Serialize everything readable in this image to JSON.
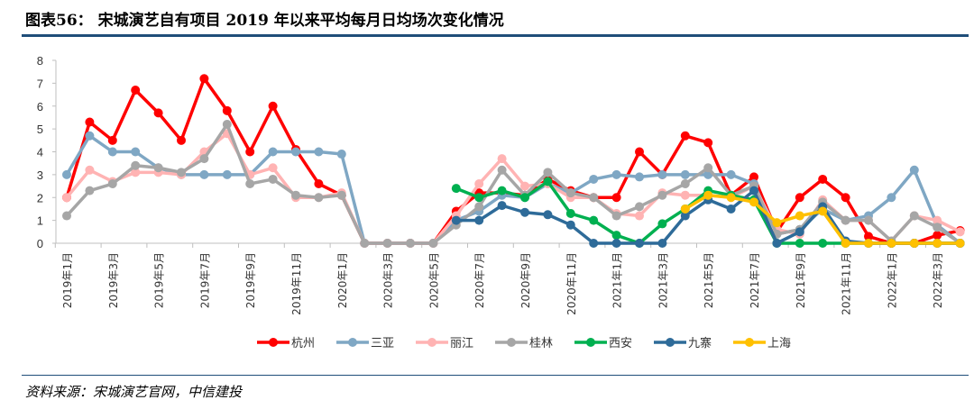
{
  "title": "图表56：  宋城演艺自有项目 2019 年以来平均每月日均场次变化情况",
  "source": "资料来源：宋城演艺官网，中信建投",
  "chart_data": {
    "type": "line",
    "ylim": [
      0,
      8
    ],
    "yticks": [
      "0",
      "1",
      "2",
      "3",
      "4",
      "5",
      "6",
      "7",
      "8"
    ],
    "x": [
      "2019年1月",
      "2019年2月",
      "2019年3月",
      "2019年4月",
      "2019年5月",
      "2019年6月",
      "2019年7月",
      "2019年8月",
      "2019年9月",
      "2019年10月",
      "2019年11月",
      "2019年12月",
      "2020年1月",
      "2020年2月",
      "2020年3月",
      "2020年4月",
      "2020年5月",
      "2020年6月",
      "2020年7月",
      "2020年8月",
      "2020年9月",
      "2020年10月",
      "2020年11月",
      "2020年12月",
      "2021年1月",
      "2021年2月",
      "2021年3月",
      "2021年4月",
      "2021年5月",
      "2021年6月",
      "2021年7月",
      "2021年8月",
      "2021年9月",
      "2021年10月",
      "2021年11月",
      "2021年12月",
      "2022年1月",
      "2022年2月",
      "2022年3月",
      "2022年4月"
    ],
    "xtick_labels": [
      "2019年1月",
      "2019年3月",
      "2019年5月",
      "2019年7月",
      "2019年9月",
      "2019年11月",
      "2020年1月",
      "2020年3月",
      "2020年5月",
      "2020年7月",
      "2020年9月",
      "2020年11月",
      "2021年1月",
      "2021年3月",
      "2021年5月",
      "2021年7月",
      "2021年9月",
      "2021年11月",
      "2022年1月",
      "2022年3月"
    ],
    "legend": "bottom",
    "series": [
      {
        "name": "杭州",
        "color": "#ff0000",
        "values": [
          2.0,
          5.3,
          4.5,
          6.7,
          5.7,
          4.5,
          7.2,
          5.8,
          4.0,
          6.0,
          4.1,
          2.6,
          2.1,
          0,
          0,
          0,
          0,
          1.4,
          2.2,
          2.2,
          2.1,
          2.8,
          2.3,
          2.0,
          2.0,
          4.0,
          3.0,
          4.7,
          4.4,
          2.1,
          2.9,
          0.5,
          2.0,
          2.8,
          2.0,
          0.3,
          0,
          0,
          0.35,
          0.55
        ]
      },
      {
        "name": "三亚",
        "color": "#7fa7c4",
        "values": [
          3.0,
          4.7,
          4.0,
          4.0,
          3.3,
          3.0,
          3.0,
          3.0,
          3.0,
          4.0,
          4.0,
          4.0,
          3.9,
          0,
          0,
          0,
          0,
          1.0,
          1.4,
          2.1,
          2.0,
          2.6,
          2.2,
          2.8,
          3.0,
          2.9,
          3.0,
          3.0,
          3.0,
          3.0,
          2.6,
          0.4,
          0.6,
          1.5,
          1.0,
          1.2,
          2.0,
          3.2,
          0.8,
          0
        ]
      },
      {
        "name": "丽江",
        "color": "#ffb3b3",
        "values": [
          2.0,
          3.2,
          2.7,
          3.1,
          3.1,
          3.0,
          4.0,
          4.8,
          3.0,
          3.3,
          2.0,
          2.0,
          2.2,
          0,
          0,
          0,
          0,
          1.2,
          2.6,
          3.7,
          2.5,
          2.6,
          2.0,
          2.0,
          1.3,
          1.2,
          2.2,
          2.1,
          2.1,
          2.0,
          2.5,
          0.6,
          0.4,
          1.9,
          1.0,
          1.0,
          0.1,
          1.2,
          1.0,
          0.5
        ]
      },
      {
        "name": "桂林",
        "color": "#a6a6a6",
        "values": [
          1.2,
          2.3,
          2.6,
          3.4,
          3.3,
          3.1,
          3.7,
          5.2,
          2.6,
          2.8,
          2.1,
          2.0,
          2.1,
          0,
          0,
          0,
          0,
          0.8,
          1.6,
          3.2,
          2.1,
          3.1,
          2.2,
          2.0,
          1.2,
          1.6,
          2.1,
          2.6,
          3.3,
          2.1,
          2.5,
          0.4,
          0.6,
          1.8,
          1.0,
          1.0,
          0.1,
          1.2,
          0.7,
          0
        ]
      },
      {
        "name": "西安",
        "color": "#00b050",
        "values": [
          null,
          null,
          null,
          null,
          null,
          null,
          null,
          null,
          null,
          null,
          null,
          null,
          null,
          null,
          null,
          null,
          null,
          2.4,
          2.0,
          2.3,
          2.0,
          2.7,
          1.3,
          1.0,
          0.35,
          0,
          0.85,
          1.5,
          2.3,
          2.1,
          1.9,
          0,
          0,
          0,
          0,
          0,
          0,
          0,
          0,
          0
        ]
      },
      {
        "name": "九寨",
        "color": "#2e6b99",
        "values": [
          null,
          null,
          null,
          null,
          null,
          null,
          null,
          null,
          null,
          null,
          null,
          null,
          null,
          null,
          null,
          null,
          null,
          1.0,
          1.0,
          1.65,
          1.35,
          1.25,
          0.8,
          0,
          0,
          0,
          0,
          1.2,
          1.9,
          1.5,
          2.3,
          0,
          0.5,
          1.6,
          0.1,
          0,
          0,
          0,
          0,
          0
        ]
      },
      {
        "name": "上海",
        "color": "#ffc000",
        "values": [
          null,
          null,
          null,
          null,
          null,
          null,
          null,
          null,
          null,
          null,
          null,
          null,
          null,
          null,
          null,
          null,
          null,
          null,
          null,
          null,
          null,
          null,
          null,
          null,
          null,
          null,
          null,
          1.5,
          2.1,
          2.0,
          1.8,
          0.9,
          1.2,
          1.4,
          0,
          0,
          0,
          0,
          0,
          0
        ]
      }
    ]
  }
}
